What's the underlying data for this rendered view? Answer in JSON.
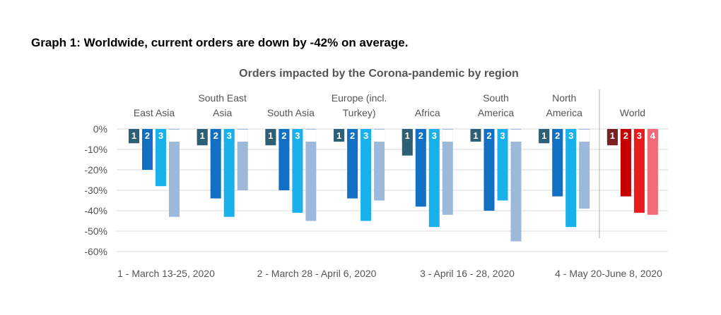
{
  "heading": "Graph 1: Worldwide, current orders are down by -42% on average.",
  "chart_data": {
    "type": "bar",
    "title": "Orders impacted by the Corona-pandemic by region",
    "categories": [
      "East Asia",
      "South East Asia",
      "South Asia",
      "Europe (incl. Turkey)",
      "Africa",
      "South America",
      "North America",
      "World"
    ],
    "category_lines": [
      [
        "East Asia"
      ],
      [
        "South East",
        "Asia"
      ],
      [
        "South Asia"
      ],
      [
        "Europe (incl.",
        "Turkey)"
      ],
      [
        "Africa"
      ],
      [
        "South",
        "America"
      ],
      [
        "North",
        "America"
      ],
      [
        "World"
      ]
    ],
    "series": [
      {
        "name": "1 - March 13-25, 2020",
        "label": "1",
        "values": [
          -7,
          -8,
          -8,
          -6,
          -13,
          -4,
          -7,
          -8
        ]
      },
      {
        "name": "2 - March 28 - April 6, 2020",
        "label": "2",
        "values": [
          -20,
          -34,
          -30,
          -34,
          -38,
          -40,
          -33,
          -33
        ]
      },
      {
        "name": "3 - April 16 - 28, 2020",
        "label": "3",
        "values": [
          -28,
          -43,
          -41,
          -45,
          -48,
          -35,
          -48,
          -41
        ]
      },
      {
        "name": "4 - May 20-June 8, 2020",
        "label": "4",
        "values": [
          -43,
          -30,
          -45,
          -35,
          -42,
          -55,
          -39,
          -42
        ]
      }
    ],
    "colors": {
      "regions": [
        "#2e5f73",
        "#1270c4",
        "#19b1ec",
        "#9cb9dc"
      ],
      "world": [
        "#7b2020",
        "#c40000",
        "#ea1b1b",
        "#f26a77"
      ],
      "label_box_light": "#ffffff",
      "label_text_light": "#555555",
      "grid": "#d9d9d9",
      "separator": "#bfbfbf"
    },
    "y_ticks": [
      "0%",
      "-10%",
      "-20%",
      "-30%",
      "-40%",
      "-50%",
      "-60%"
    ],
    "ylim": [
      -60,
      0
    ],
    "grid": true,
    "legend_position": "bottom",
    "separator_before_last_group": true
  }
}
